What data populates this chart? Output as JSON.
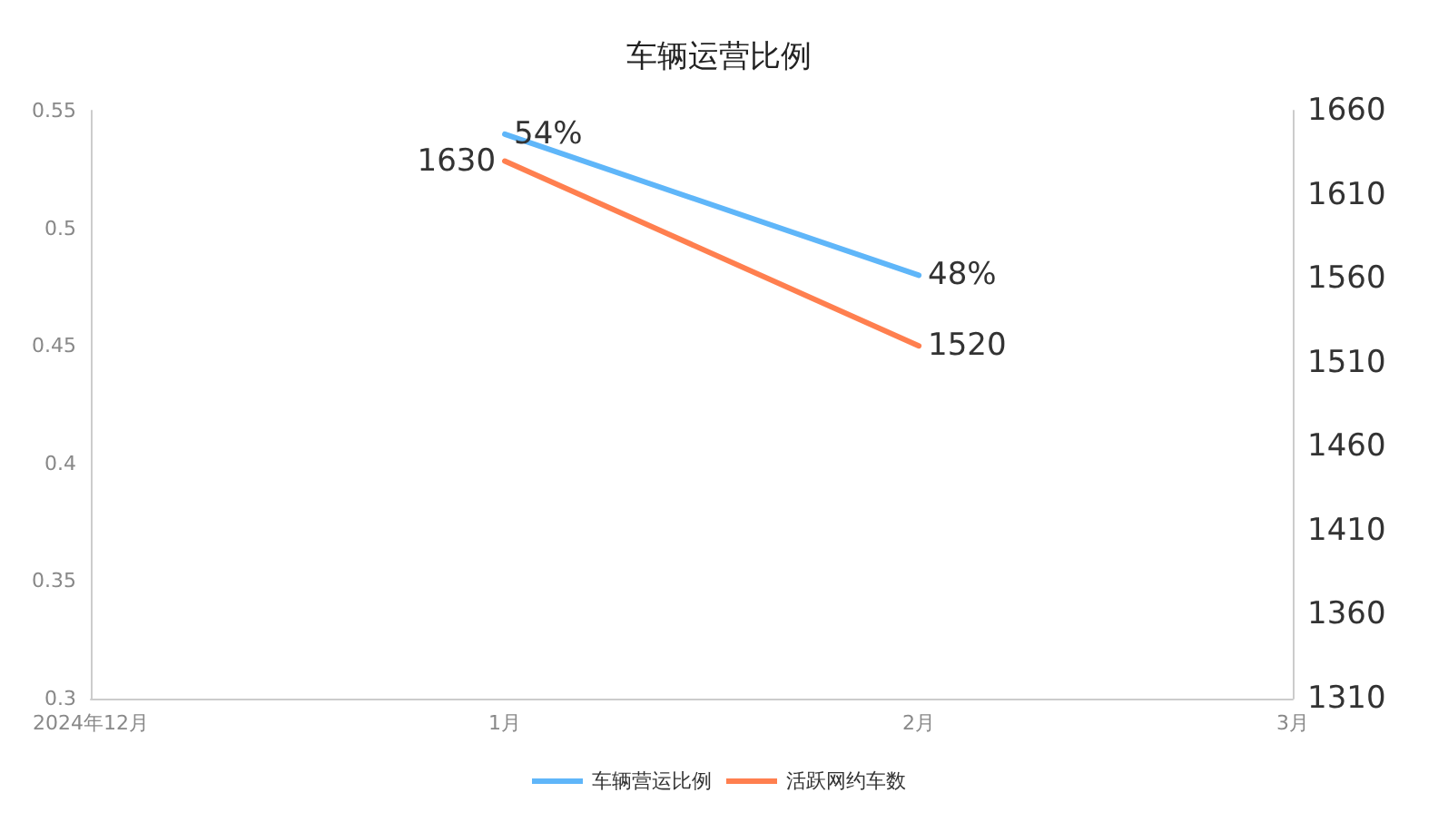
{
  "chart_data": {
    "type": "line",
    "title": "车辆运营比例",
    "x": [
      "2025-01",
      "2025-02"
    ],
    "xlim": [
      "2024-12",
      "2025-03"
    ],
    "xticks": [
      {
        "value": "2024-12",
        "label": "2024年12月"
      },
      {
        "value": "2025-01",
        "label": "1月"
      },
      {
        "value": "2025-02",
        "label": "2月"
      },
      {
        "value": "2025-03",
        "label": "3月"
      }
    ],
    "series": [
      {
        "name": "车辆营运比例",
        "color": "#5fb6f9",
        "values": [
          0.54,
          0.48
        ],
        "value_labels": [
          "54%",
          "48%"
        ]
      },
      {
        "name": "活跃网约车数",
        "color": "#ff7f4f",
        "values": [
          1630,
          1520
        ],
        "value_labels": [
          "1630",
          "1520"
        ],
        "axis": "y2"
      }
    ],
    "ylim": [
      0.3,
      0.55
    ],
    "yticks": [
      0.3,
      0.35,
      0.4,
      0.45,
      0.5,
      0.55
    ],
    "y2lim": [
      1310,
      1660
    ],
    "y2ticks": [
      1310,
      1360,
      1410,
      1460,
      1510,
      1560,
      1610,
      1660
    ],
    "grid": false,
    "legend": "bottom",
    "marker": "none",
    "line_style": "solid"
  }
}
